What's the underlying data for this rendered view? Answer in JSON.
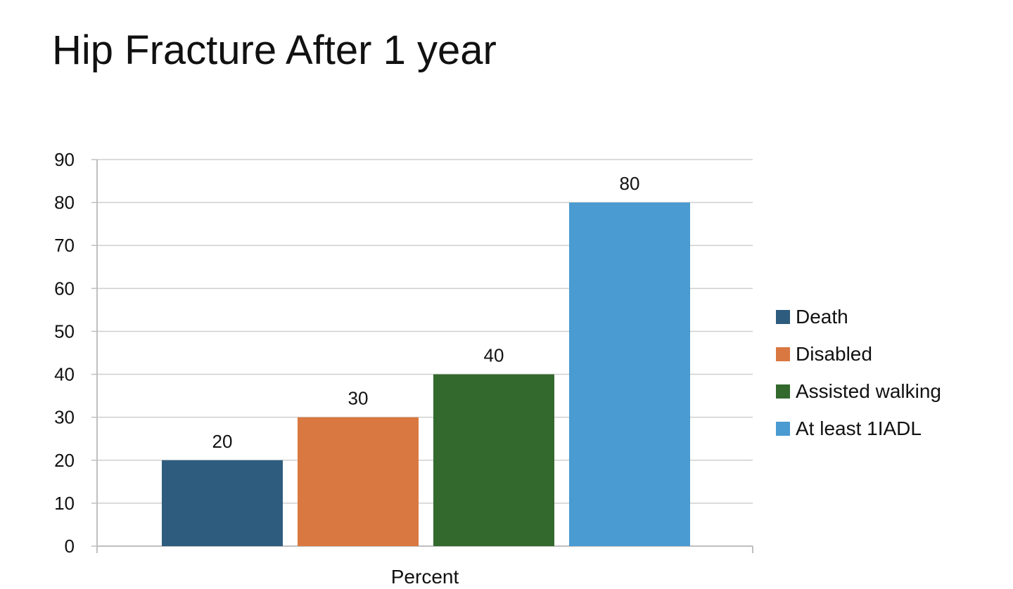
{
  "chart_data": {
    "type": "bar",
    "title": "Hip Fracture After 1 year",
    "xlabel": "Percent",
    "ylabel": "",
    "categories": [
      "Percent"
    ],
    "ylim": [
      0,
      90
    ],
    "yticks": [
      0,
      10,
      20,
      30,
      40,
      50,
      60,
      70,
      80,
      90
    ],
    "grid": true,
    "legend_position": "right",
    "series": [
      {
        "name": "Death",
        "values": [
          20
        ],
        "color": "#2E5C7E"
      },
      {
        "name": "Disabled",
        "values": [
          30
        ],
        "color": "#D97841"
      },
      {
        "name": "Assisted walking",
        "values": [
          40
        ],
        "color": "#33692D"
      },
      {
        "name": "At least 1IADL",
        "values": [
          80
        ],
        "color": "#4A9BD1"
      }
    ],
    "data_labels": [
      "20",
      "30",
      "40",
      "80"
    ]
  }
}
